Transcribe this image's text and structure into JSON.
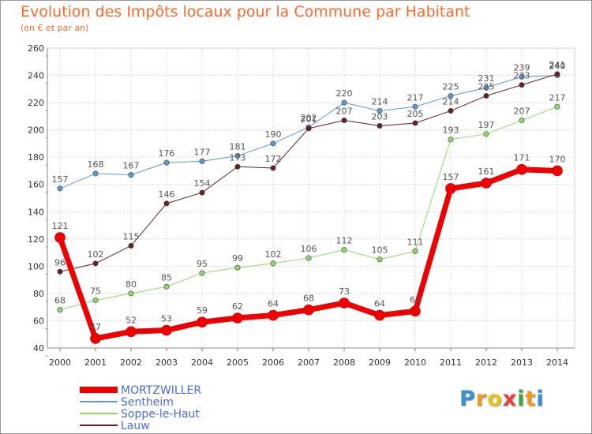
{
  "title": "Evolution des Impôts locaux pour la Commune par Habitant",
  "subtitle": "(en € et par an)",
  "logo": [
    "P",
    "r",
    "o",
    "x",
    "i",
    "t",
    "i"
  ],
  "logo_colors": [
    "#3a8fd8",
    "#f29a1f",
    "#e8c41a",
    "#e8403a",
    "#3aaa3a",
    "#f29a1f",
    "#3a8fd8"
  ],
  "chart_data": {
    "type": "line",
    "title": "Evolution des Impôts locaux pour la Commune par Habitant",
    "subtitle": "(en € et par an)",
    "xlabel": "",
    "ylabel": "",
    "categories": [
      "2000",
      "2001",
      "2002",
      "2003",
      "2004",
      "2005",
      "2006",
      "2007",
      "2008",
      "2009",
      "2010",
      "2011",
      "2012",
      "2013",
      "2014"
    ],
    "ylim": [
      40,
      260
    ],
    "yticks": [
      40,
      60,
      80,
      100,
      120,
      140,
      160,
      180,
      200,
      220,
      240,
      260
    ],
    "grid": true,
    "legend_position": "bottom-left",
    "series": [
      {
        "name": "Sentheim",
        "color": "#5a9bd5",
        "width": 1,
        "values": [
          157,
          168,
          167,
          176,
          177,
          181,
          190,
          202,
          220,
          214,
          217,
          225,
          231,
          239,
          240
        ]
      },
      {
        "name": "Lauw",
        "color": "#6b1e22",
        "width": 1,
        "values": [
          96,
          102,
          115,
          146,
          154,
          173,
          172,
          201,
          207,
          203,
          205,
          214,
          225,
          233,
          241
        ]
      },
      {
        "name": "Soppe-le-Haut",
        "color": "#8fd86a",
        "width": 1,
        "values": [
          68,
          75,
          80,
          85,
          95,
          99,
          102,
          106,
          112,
          105,
          111,
          193,
          197,
          207,
          217
        ]
      },
      {
        "name": "MORTZWILLER",
        "color": "#ee0000",
        "width": 7,
        "values": [
          121,
          47,
          52,
          53,
          59,
          62,
          64,
          68,
          73,
          64,
          67,
          157,
          161,
          171,
          170
        ]
      }
    ],
    "legend_order": [
      "MORTZWILLER",
      "Sentheim",
      "Soppe-le-Haut",
      "Lauw"
    ]
  }
}
